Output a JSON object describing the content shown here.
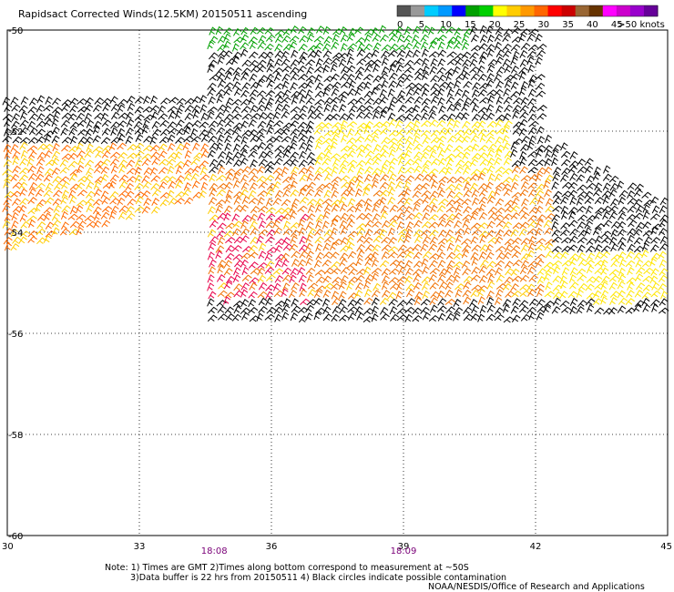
{
  "title": "Rapidsact Corrected Winds(12.5KM) 20150511 ascending",
  "colorbar": {
    "tick_labels": [
      "0",
      "5",
      "10",
      "15",
      "20",
      "25",
      "30",
      "35",
      "40",
      "45",
      ">50 knots"
    ],
    "colors": [
      "#555555",
      "#999999",
      "#00ccff",
      "#0099ff",
      "#0000ff",
      "#00a000",
      "#00d000",
      "#ffff00",
      "#ffcc00",
      "#ff9900",
      "#ff6600",
      "#ff0000",
      "#cc0000",
      "#996633",
      "#663300",
      "#ff00ff",
      "#cc00cc",
      "#9900cc",
      "#660099"
    ]
  },
  "map": {
    "lat_range": [
      -50,
      -60
    ],
    "lon_range": [
      30,
      45
    ],
    "lat_ticks": [
      "-50",
      "-52",
      "-54",
      "-56",
      "-58",
      "-60"
    ],
    "lon_ticks": [
      "30",
      "33",
      "36",
      "39",
      "42",
      "45"
    ],
    "lat_tick_values": [
      -50,
      -52,
      -54,
      -56,
      -58,
      -60
    ],
    "lon_tick_values": [
      30,
      33,
      36,
      39,
      42,
      45
    ],
    "grid": "dotted"
  },
  "times": [
    {
      "label": "18:08",
      "lon": 34.7
    },
    {
      "label": "18:09",
      "lon": 39.0
    }
  ],
  "notes": {
    "line1": "Note: 1) Times are GMT 2)Times along bottom correspond to measurement at ~50S",
    "line2": "3)Data buffer is 22 hrs from 20150511 4) Black circles indicate possible contamination",
    "credit": "NOAA/NESDIS/Office of Research and Applications"
  }
}
